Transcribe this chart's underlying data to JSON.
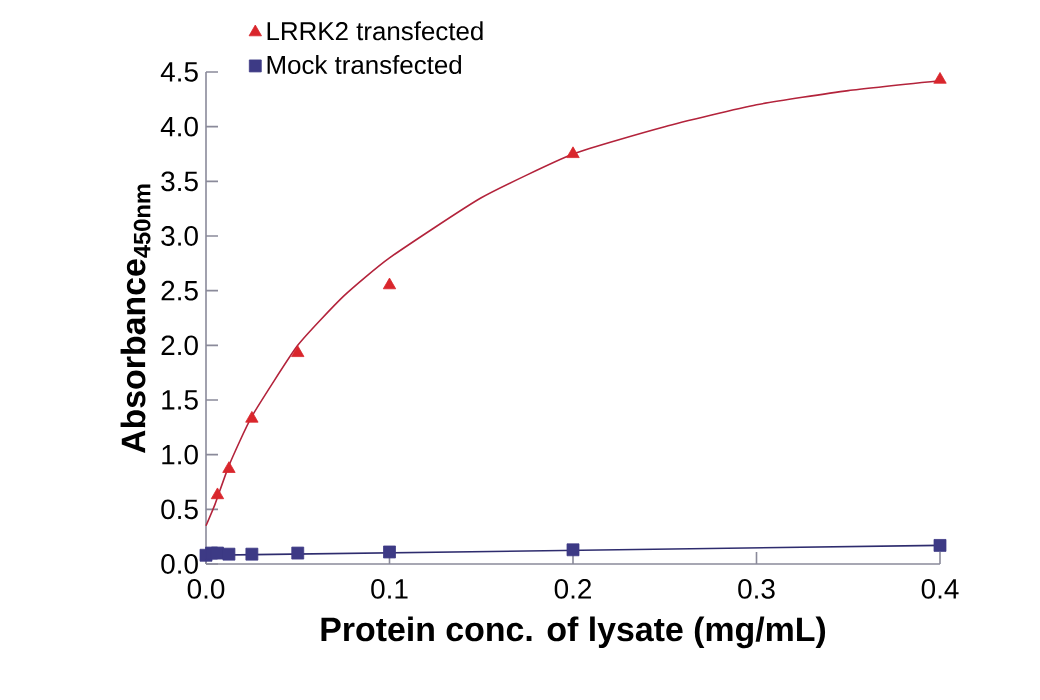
{
  "chart_data": {
    "type": "scatter",
    "xlabel": "Protein conc. of lysate (mg/mL)",
    "ylabel": "Absorbance$_{450nm}$",
    "xlim": [
      0,
      0.4
    ],
    "xticks": [
      {
        "value": 0,
        "label": "0.0"
      },
      0.1,
      0.2,
      0.3,
      0.4
    ],
    "ylim": [
      0,
      4.5
    ],
    "yticks": [
      {
        "value": 0,
        "label": "0.0"
      },
      0.5,
      {
        "value": 1,
        "label": "1.0"
      },
      1.5,
      {
        "value": 2,
        "label": "2.0"
      },
      2.5,
      {
        "value": 3,
        "label": "3.0"
      },
      3.5,
      {
        "value": 4,
        "label": "4.0"
      },
      4.5
    ],
    "grid": false,
    "legend": "top left",
    "series": [
      {
        "type": "line",
        "marker": "none",
        "line_style": "solid",
        "color": "#b3233b",
        "x": [
          0,
          0.005,
          0.0125,
          0.025,
          0.05,
          0.075,
          0.1,
          0.15,
          0.2,
          0.25,
          0.3,
          0.35,
          0.4
        ],
        "values": [
          0.35,
          0.55,
          0.9,
          1.35,
          2.0,
          2.45,
          2.8,
          3.35,
          3.75,
          4.0,
          4.2,
          4.33,
          4.42
        ]
      },
      {
        "type": "line",
        "marker": "none",
        "line_style": "solid",
        "color": "#2e2c6e",
        "x": [
          0,
          0.4
        ],
        "values": [
          0.08,
          0.17
        ]
      },
      {
        "name": "LRRK2 transfected",
        "marker": "triangle",
        "color": "#d9262c",
        "x": [
          0.00625,
          0.0125,
          0.025,
          0.05,
          0.1,
          0.2,
          0.4
        ],
        "values": [
          0.63,
          0.87,
          1.33,
          1.93,
          2.55,
          3.75,
          4.43
        ]
      },
      {
        "name": "Mock transfected",
        "marker": "square",
        "color": "#3d3a85",
        "x": [
          0,
          0.003,
          0.00625,
          0.0125,
          0.025,
          0.05,
          0.1,
          0.2,
          0.4
        ],
        "values": [
          0.08,
          0.1,
          0.1,
          0.09,
          0.09,
          0.1,
          0.11,
          0.13,
          0.17
        ]
      }
    ]
  }
}
